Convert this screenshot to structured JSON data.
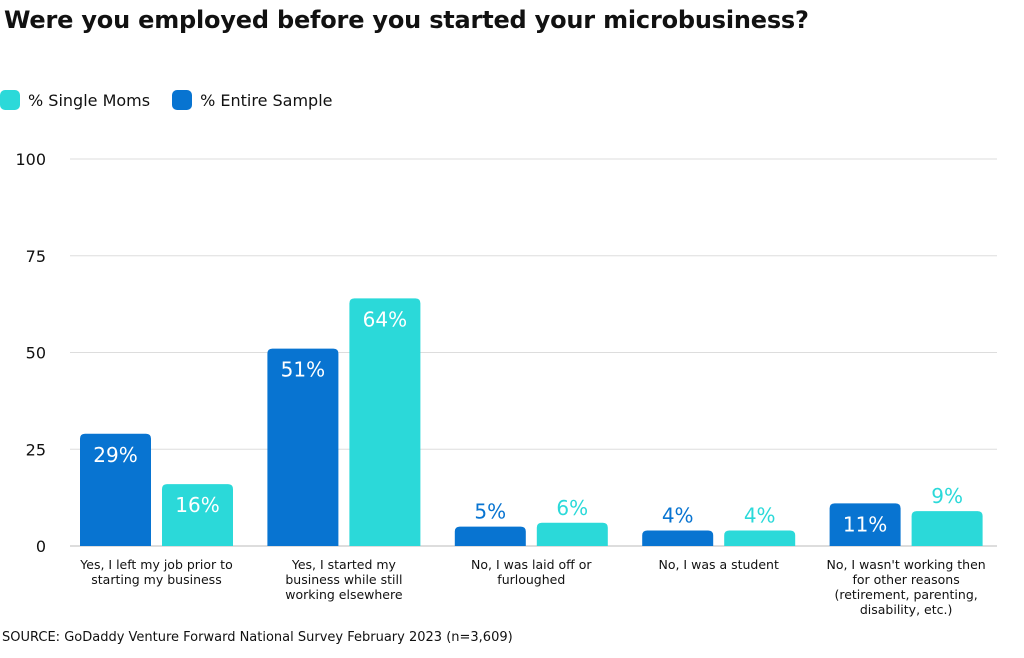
{
  "colors": {
    "single_moms": "#2BD9D9",
    "entire_sample": "#0874D1",
    "grid": "#dddddd",
    "bar_text": "#ffffff"
  },
  "chart_data": {
    "type": "bar",
    "title": "Were you employed before you started your microbusiness?",
    "categories": [
      [
        "Yes, I left my job prior to",
        "starting my business"
      ],
      [
        "Yes, I started my",
        "business while still",
        "working elsewhere"
      ],
      [
        "No, I was laid off or",
        "furloughed"
      ],
      [
        "No, I was a student"
      ],
      [
        "No, I wasn't working then",
        "for other reasons",
        "(retirement, parenting,",
        "disability, etc.)"
      ]
    ],
    "series": [
      {
        "name": "% Entire Sample",
        "color": "#0874D1",
        "values": [
          29,
          51,
          5,
          4,
          11
        ],
        "labels": [
          "29%",
          "51%",
          "5%",
          "4%",
          "11%"
        ]
      },
      {
        "name": "% Single Moms",
        "color": "#2BD9D9",
        "values": [
          16,
          64,
          6,
          4,
          9
        ],
        "labels": [
          "16%",
          "64%",
          "6%",
          "4%",
          "9%"
        ]
      }
    ],
    "legend_order": [
      "% Single Moms",
      "% Entire Sample"
    ],
    "legend_position": "top-left",
    "ylim": [
      0,
      100
    ],
    "yticks": [
      0,
      25,
      50,
      75,
      100
    ],
    "grid": true,
    "source": "SOURCE: GoDaddy Venture Forward National Survey February 2023 (n=3,609)"
  }
}
